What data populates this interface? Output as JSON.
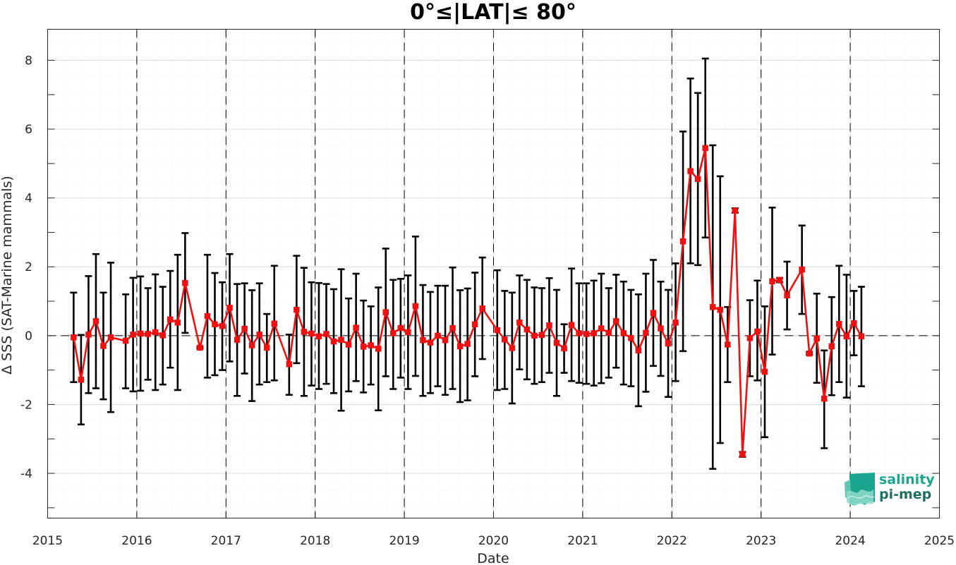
{
  "chart_data": {
    "type": "line",
    "title": "0°≤|LAT|≤ 80°",
    "xlabel": "Date",
    "ylabel": "Δ SSS (SAT-Marine mammals)",
    "xlim": [
      2015,
      2025
    ],
    "ylim": [
      -5.3,
      8.9
    ],
    "xticks": [
      "2015",
      "2016",
      "2017",
      "2018",
      "2019",
      "2020",
      "2021",
      "2022",
      "2023",
      "2024",
      "2025"
    ],
    "yticks": [
      "-4",
      "-2",
      "0",
      "2",
      "4",
      "6",
      "8"
    ],
    "grid": true,
    "year_boundary_lines": "dashed vertical lines at each year start",
    "zero_line": "dashed horizontal line at 0",
    "series": [
      {
        "color": "#ee1111",
        "errorbar_color": "#000000",
        "points": [
          {
            "x": "2015-04",
            "y": -0.05,
            "lo": -1.35,
            "hi": 1.25
          },
          {
            "x": "2015-05",
            "y": -1.28,
            "lo": -2.58,
            "hi": 0.02
          },
          {
            "x": "2015-06",
            "y": 0.03,
            "lo": -1.67,
            "hi": 1.73
          },
          {
            "x": "2015-07",
            "y": 0.42,
            "lo": -1.53,
            "hi": 2.37
          },
          {
            "x": "2015-08",
            "y": -0.3,
            "lo": -1.85,
            "hi": 1.25
          },
          {
            "x": "2015-09",
            "y": -0.05,
            "lo": -2.22,
            "hi": 2.12
          },
          {
            "x": "2015-11",
            "y": -0.15,
            "lo": -1.53,
            "hi": 1.2
          },
          {
            "x": "2015-12",
            "y": 0.03,
            "lo": -1.62,
            "hi": 1.68
          },
          {
            "x": "2016-01",
            "y": 0.06,
            "lo": -1.6,
            "hi": 1.72
          },
          {
            "x": "2016-02",
            "y": 0.05,
            "lo": -1.28,
            "hi": 1.38
          },
          {
            "x": "2016-03",
            "y": 0.1,
            "lo": -1.58,
            "hi": 1.78
          },
          {
            "x": "2016-04",
            "y": 0.01,
            "lo": -1.42,
            "hi": 1.42
          },
          {
            "x": "2016-05",
            "y": 0.47,
            "lo": -0.93,
            "hi": 1.88
          },
          {
            "x": "2016-06",
            "y": 0.38,
            "lo": -1.58,
            "hi": 2.35
          },
          {
            "x": "2016-07",
            "y": 1.53,
            "lo": 0.08,
            "hi": 2.98
          },
          {
            "x": "2016-09",
            "y": -0.35,
            "lo": -0.38,
            "hi": -0.32
          },
          {
            "x": "2016-10",
            "y": 0.57,
            "lo": -1.22,
            "hi": 2.35
          },
          {
            "x": "2016-11",
            "y": 0.33,
            "lo": -1.15,
            "hi": 1.82
          },
          {
            "x": "2016-12",
            "y": 0.28,
            "lo": -1.0,
            "hi": 1.55
          },
          {
            "x": "2017-01",
            "y": 0.81,
            "lo": -0.75,
            "hi": 2.37
          },
          {
            "x": "2017-02",
            "y": -0.12,
            "lo": -1.75,
            "hi": 1.5
          },
          {
            "x": "2017-03",
            "y": 0.2,
            "lo": -1.1,
            "hi": 1.52
          },
          {
            "x": "2017-04",
            "y": -0.28,
            "lo": -1.9,
            "hi": 1.32
          },
          {
            "x": "2017-05",
            "y": 0.03,
            "lo": -1.42,
            "hi": 1.52
          },
          {
            "x": "2017-06",
            "y": -0.35,
            "lo": -1.35,
            "hi": 0.63
          },
          {
            "x": "2017-07",
            "y": 0.35,
            "lo": -1.3,
            "hi": 2.03
          },
          {
            "x": "2017-09",
            "y": -0.83,
            "lo": -1.72,
            "hi": 0.03
          },
          {
            "x": "2017-10",
            "y": 0.75,
            "lo": -0.8,
            "hi": 2.32
          },
          {
            "x": "2017-11",
            "y": 0.11,
            "lo": -1.75,
            "hi": 1.97
          },
          {
            "x": "2017-12",
            "y": 0.06,
            "lo": -1.45,
            "hi": 1.55
          },
          {
            "x": "2018-01",
            "y": -0.02,
            "lo": -1.55,
            "hi": 1.53
          },
          {
            "x": "2018-02",
            "y": 0.05,
            "lo": -1.4,
            "hi": 1.5
          },
          {
            "x": "2018-03",
            "y": -0.17,
            "lo": -1.67,
            "hi": 1.35
          },
          {
            "x": "2018-04",
            "y": -0.12,
            "lo": -2.18,
            "hi": 1.93
          },
          {
            "x": "2018-05",
            "y": -0.26,
            "lo": -1.62,
            "hi": 1.08
          },
          {
            "x": "2018-06",
            "y": 0.23,
            "lo": -1.32,
            "hi": 1.8
          },
          {
            "x": "2018-07",
            "y": -0.32,
            "lo": -1.65,
            "hi": 1.02
          },
          {
            "x": "2018-08",
            "y": -0.28,
            "lo": -1.42,
            "hi": 0.85
          },
          {
            "x": "2018-09",
            "y": -0.38,
            "lo": -2.17,
            "hi": 1.4
          },
          {
            "x": "2018-10",
            "y": 0.68,
            "lo": -1.18,
            "hi": 2.53
          },
          {
            "x": "2018-11",
            "y": 0.07,
            "lo": -1.55,
            "hi": 1.62
          },
          {
            "x": "2018-12",
            "y": 0.22,
            "lo": -1.22,
            "hi": 1.65
          },
          {
            "x": "2019-01",
            "y": 0.1,
            "lo": -1.55,
            "hi": 1.75
          },
          {
            "x": "2019-02",
            "y": 0.86,
            "lo": -1.17,
            "hi": 2.88
          },
          {
            "x": "2019-03",
            "y": -0.13,
            "lo": -1.75,
            "hi": 1.47
          },
          {
            "x": "2019-04",
            "y": -0.2,
            "lo": -1.67,
            "hi": 1.27
          },
          {
            "x": "2019-05",
            "y": 0.0,
            "lo": -1.47,
            "hi": 1.45
          },
          {
            "x": "2019-06",
            "y": -0.13,
            "lo": -1.72,
            "hi": 1.45
          },
          {
            "x": "2019-07",
            "y": 0.22,
            "lo": -1.55,
            "hi": 1.98
          },
          {
            "x": "2019-08",
            "y": -0.31,
            "lo": -1.93,
            "hi": 1.32
          },
          {
            "x": "2019-09",
            "y": -0.24,
            "lo": -1.88,
            "hi": 1.37
          },
          {
            "x": "2019-10",
            "y": 0.33,
            "lo": -1.18,
            "hi": 1.83
          },
          {
            "x": "2019-11",
            "y": 0.79,
            "lo": -0.68,
            "hi": 2.27
          },
          {
            "x": "2020-01",
            "y": 0.16,
            "lo": -1.58,
            "hi": 1.9
          },
          {
            "x": "2020-02",
            "y": -0.11,
            "lo": -1.55,
            "hi": 1.3
          },
          {
            "x": "2020-03",
            "y": -0.36,
            "lo": -1.97,
            "hi": 1.25
          },
          {
            "x": "2020-04",
            "y": 0.38,
            "lo": -0.98,
            "hi": 1.75
          },
          {
            "x": "2020-05",
            "y": 0.18,
            "lo": -1.27,
            "hi": 1.62
          },
          {
            "x": "2020-06",
            "y": 0.0,
            "lo": -1.4,
            "hi": 1.4
          },
          {
            "x": "2020-07",
            "y": 0.02,
            "lo": -1.35,
            "hi": 1.38
          },
          {
            "x": "2020-08",
            "y": 0.3,
            "lo": -1.08,
            "hi": 1.67
          },
          {
            "x": "2020-09",
            "y": -0.21,
            "lo": -1.75,
            "hi": 1.33
          },
          {
            "x": "2020-10",
            "y": -0.37,
            "lo": -1.08,
            "hi": 0.33
          },
          {
            "x": "2020-11",
            "y": 0.31,
            "lo": -1.32,
            "hi": 1.95
          },
          {
            "x": "2020-12",
            "y": 0.07,
            "lo": -1.37,
            "hi": 1.52
          },
          {
            "x": "2021-01",
            "y": 0.05,
            "lo": -1.4,
            "hi": 1.52
          },
          {
            "x": "2021-02",
            "y": 0.07,
            "lo": -1.45,
            "hi": 1.6
          },
          {
            "x": "2021-03",
            "y": 0.21,
            "lo": -1.38,
            "hi": 1.8
          },
          {
            "x": "2021-04",
            "y": 0.08,
            "lo": -1.22,
            "hi": 1.38
          },
          {
            "x": "2021-05",
            "y": 0.42,
            "lo": -0.93,
            "hi": 1.77
          },
          {
            "x": "2021-06",
            "y": 0.07,
            "lo": -1.42,
            "hi": 1.57
          },
          {
            "x": "2021-07",
            "y": -0.07,
            "lo": -1.47,
            "hi": 1.33
          },
          {
            "x": "2021-08",
            "y": -0.43,
            "lo": -2.05,
            "hi": 1.2
          },
          {
            "x": "2021-09",
            "y": 0.08,
            "lo": -1.63,
            "hi": 1.8
          },
          {
            "x": "2021-10",
            "y": 0.66,
            "lo": -0.88,
            "hi": 2.2
          },
          {
            "x": "2021-11",
            "y": 0.21,
            "lo": -1.17,
            "hi": 1.57
          },
          {
            "x": "2021-12",
            "y": -0.23,
            "lo": -1.78,
            "hi": 1.33
          },
          {
            "x": "2022-01",
            "y": 0.38,
            "lo": -1.32,
            "hi": 2.1
          },
          {
            "x": "2022-02",
            "y": 2.74,
            "lo": -0.45,
            "hi": 5.93
          },
          {
            "x": "2022-03",
            "y": 4.78,
            "lo": 2.1,
            "hi": 7.47
          },
          {
            "x": "2022-04",
            "y": 4.55,
            "lo": 2.05,
            "hi": 7.05
          },
          {
            "x": "2022-05",
            "y": 5.45,
            "lo": 2.85,
            "hi": 8.05
          },
          {
            "x": "2022-06",
            "y": 0.83,
            "lo": -3.87,
            "hi": 5.53
          },
          {
            "x": "2022-07",
            "y": 0.75,
            "lo": -3.12,
            "hi": 4.63
          },
          {
            "x": "2022-08",
            "y": -0.26,
            "lo": -1.35,
            "hi": 0.83
          },
          {
            "x": "2022-09",
            "y": 3.63,
            "lo": 3.57,
            "hi": 3.7
          },
          {
            "x": "2022-10",
            "y": -3.45,
            "lo": -3.52,
            "hi": -3.38
          },
          {
            "x": "2022-11",
            "y": -0.07,
            "lo": -1.18,
            "hi": 1.03
          },
          {
            "x": "2022-12",
            "y": 0.12,
            "lo": -1.3,
            "hi": 1.6
          },
          {
            "x": "2023-01",
            "y": -1.05,
            "lo": -2.95,
            "hi": 0.85
          },
          {
            "x": "2023-02",
            "y": 1.58,
            "lo": -0.55,
            "hi": 3.72
          },
          {
            "x": "2023-03",
            "y": 1.62,
            "lo": 1.55,
            "hi": 1.68
          },
          {
            "x": "2023-04",
            "y": 1.17,
            "lo": 0.18,
            "hi": 2.15
          },
          {
            "x": "2023-06",
            "y": 1.92,
            "lo": 0.63,
            "hi": 3.2
          },
          {
            "x": "2023-07",
            "y": -0.52,
            "lo": -0.55,
            "hi": -0.48
          },
          {
            "x": "2023-08",
            "y": -0.08,
            "lo": -1.37,
            "hi": 1.22
          },
          {
            "x": "2023-09",
            "y": -1.83,
            "lo": -3.27,
            "hi": -0.43
          },
          {
            "x": "2023-10",
            "y": -0.31,
            "lo": -1.73,
            "hi": 1.12
          },
          {
            "x": "2023-11",
            "y": 0.34,
            "lo": -1.35,
            "hi": 2.03
          },
          {
            "x": "2023-12",
            "y": -0.02,
            "lo": -1.8,
            "hi": 1.77
          },
          {
            "x": "2024-01",
            "y": 0.36,
            "lo": -0.57,
            "hi": 1.3
          },
          {
            "x": "2024-02",
            "y": -0.02,
            "lo": -1.47,
            "hi": 1.42
          }
        ]
      }
    ]
  },
  "logo": {
    "line1": "salinity",
    "line2": "pi-mep",
    "color": "#1aa68e"
  }
}
